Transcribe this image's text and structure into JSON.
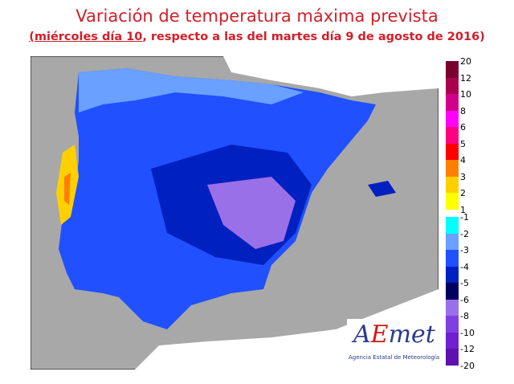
{
  "title": "Variación de temperatura máxima prevista",
  "subtitle_underlined": "(miércoles día 10",
  "subtitle_rest": ", respecto a las del martes día 9 de agosto de 2016)",
  "logo": {
    "text": "AEmet",
    "caption": "Agencia Estatal de Meteorología"
  },
  "legend": {
    "warm": {
      "labels": [
        "20",
        "12",
        "10",
        "8",
        "6",
        "5",
        "4",
        "3",
        "2",
        "1"
      ],
      "colors": [
        "#7a0030",
        "#a8004e",
        "#d0008a",
        "#ff00ff",
        "#ff0080",
        "#ff0000",
        "#ff8000",
        "#ffd000",
        "#ffff00"
      ]
    },
    "cool": {
      "labels": [
        "-1",
        "-2",
        "-3",
        "-4",
        "-5",
        "-6",
        "-8",
        "-10",
        "-12",
        "-20"
      ],
      "colors": [
        "#00ffff",
        "#6aa0ff",
        "#2050ff",
        "#0020c0",
        "#000060",
        "#9a70e8",
        "#8040e0",
        "#7020d0",
        "#6010b0"
      ]
    }
  },
  "colors": {
    "sea": "#a8a8a8",
    "land_outside": "#ffffff",
    "title": "#d0202a"
  }
}
